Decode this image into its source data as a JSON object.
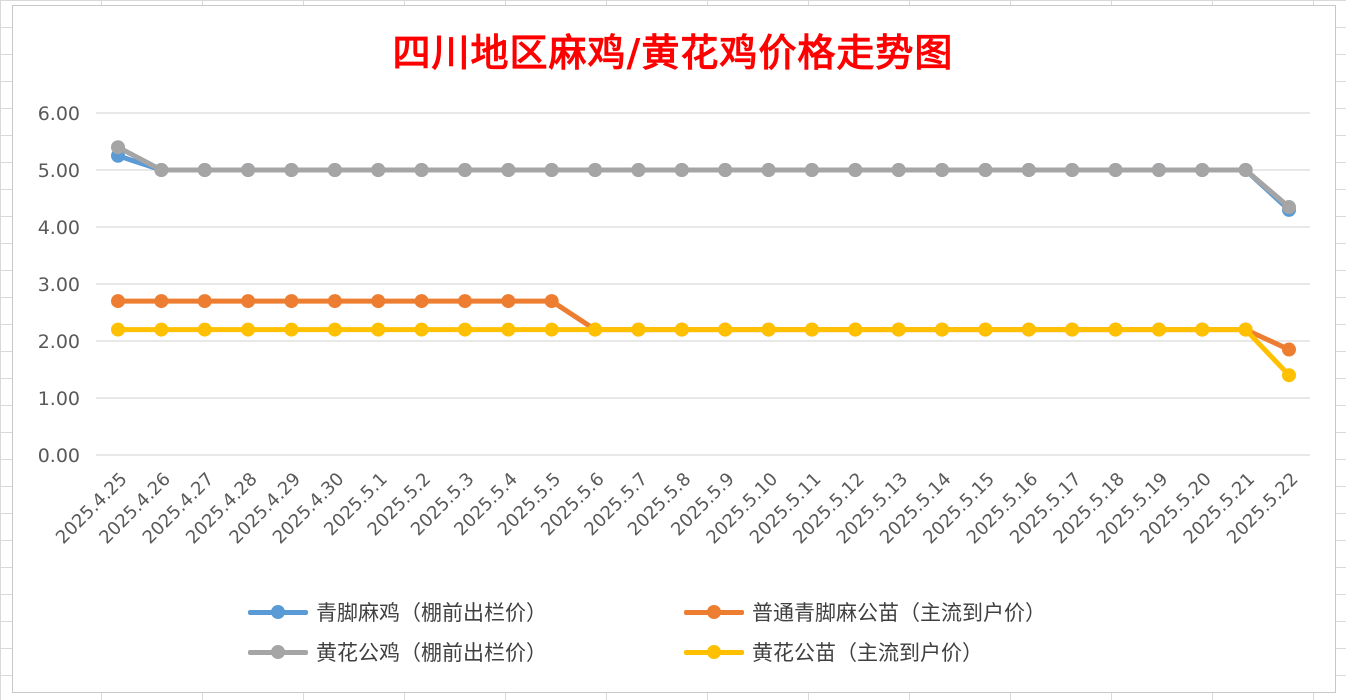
{
  "chart_data": {
    "type": "line",
    "title": "四川地区麻鸡/黄花鸡价格走势图",
    "xlabel": "",
    "ylabel": "",
    "ylim": [
      0,
      6
    ],
    "y_ticks": [
      "0.00",
      "1.00",
      "2.00",
      "3.00",
      "4.00",
      "5.00",
      "6.00"
    ],
    "grid": true,
    "legend_position": "bottom",
    "categories": [
      "2025.4.25",
      "2025.4.26",
      "2025.4.27",
      "2025.4.28",
      "2025.4.29",
      "2025.4.30",
      "2025.5.1",
      "2025.5.2",
      "2025.5.3",
      "2025.5.4",
      "2025.5.5",
      "2025.5.6",
      "2025.5.7",
      "2025.5.8",
      "2025.5.9",
      "2025.5.10",
      "2025.5.11",
      "2025.5.12",
      "2025.5.13",
      "2025.5.14",
      "2025.5.15",
      "2025.5.16",
      "2025.5.17",
      "2025.5.18",
      "2025.5.19",
      "2025.5.20",
      "2025.5.21",
      "2025.5.22"
    ],
    "series": [
      {
        "name": "青脚麻鸡（棚前出栏价）",
        "color": "#5b9bd5",
        "values": [
          5.25,
          5,
          5,
          5,
          5,
          5,
          5,
          5,
          5,
          5,
          5,
          5,
          5,
          5,
          5,
          5,
          5,
          5,
          5,
          5,
          5,
          5,
          5,
          5,
          5,
          5,
          5,
          4.3
        ]
      },
      {
        "name": "普通青脚麻公苗（主流到户价）",
        "color": "#ed7d31",
        "values": [
          2.7,
          2.7,
          2.7,
          2.7,
          2.7,
          2.7,
          2.7,
          2.7,
          2.7,
          2.7,
          2.7,
          2.2,
          2.2,
          2.2,
          2.2,
          2.2,
          2.2,
          2.2,
          2.2,
          2.2,
          2.2,
          2.2,
          2.2,
          2.2,
          2.2,
          2.2,
          2.2,
          1.85
        ]
      },
      {
        "name": "黄花公鸡（棚前出栏价）",
        "color": "#a5a5a5",
        "values": [
          5.4,
          5,
          5,
          5,
          5,
          5,
          5,
          5,
          5,
          5,
          5,
          5,
          5,
          5,
          5,
          5,
          5,
          5,
          5,
          5,
          5,
          5,
          5,
          5,
          5,
          5,
          5,
          4.35
        ]
      },
      {
        "name": "黄花公苗（主流到户价）",
        "color": "#ffc000",
        "values": [
          2.2,
          2.2,
          2.2,
          2.2,
          2.2,
          2.2,
          2.2,
          2.2,
          2.2,
          2.2,
          2.2,
          2.2,
          2.2,
          2.2,
          2.2,
          2.2,
          2.2,
          2.2,
          2.2,
          2.2,
          2.2,
          2.2,
          2.2,
          2.2,
          2.2,
          2.2,
          2.2,
          1.4
        ]
      }
    ],
    "draw_order": [
      0,
      2,
      1,
      3
    ]
  }
}
